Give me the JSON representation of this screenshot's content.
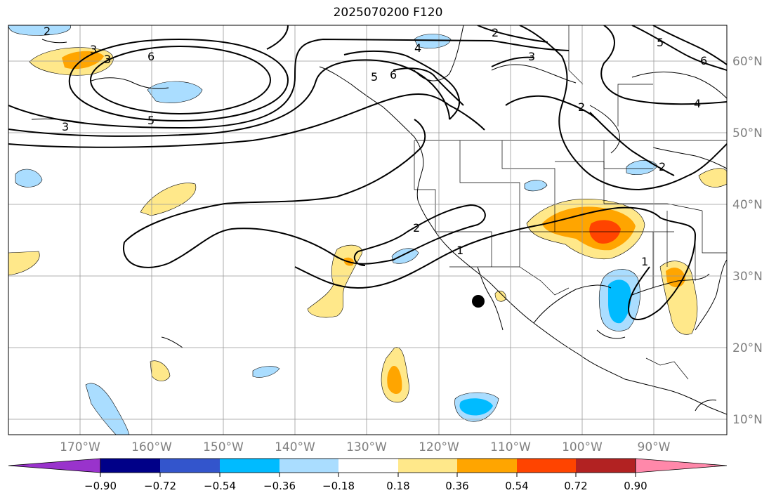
{
  "title": "2025070200 F120",
  "map": {
    "lon_labels": [
      "170°W",
      "160°W",
      "150°W",
      "140°W",
      "130°W",
      "120°W",
      "110°W",
      "100°W",
      "90°W"
    ],
    "lat_labels": [
      "60°N",
      "50°N",
      "40°N",
      "30°N",
      "20°N",
      "10°N"
    ],
    "contour_labels": [
      "2",
      "3",
      "6",
      "5",
      "3",
      "2",
      "4",
      "3",
      "5",
      "6",
      "5",
      "6",
      "4",
      "2",
      "1",
      "2",
      "1",
      "2",
      "3"
    ]
  },
  "colorbar": {
    "colors": [
      "#9933cc",
      "#000088",
      "#3355cc",
      "#00bbff",
      "#aaddff",
      "#ffffff",
      "#ffe88a",
      "#ffa500",
      "#ff4400",
      "#b22222",
      "#ff88aa"
    ],
    "ticks": [
      "−0.90",
      "−0.72",
      "−0.54",
      "−0.36",
      "−0.18",
      "0.18",
      "0.36",
      "0.54",
      "0.72",
      "0.90"
    ]
  }
}
